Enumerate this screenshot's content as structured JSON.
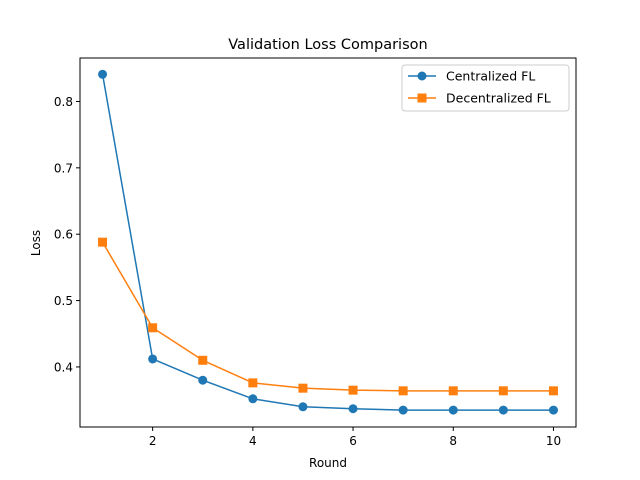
{
  "chart_data": {
    "type": "line",
    "title": "Validation Loss Comparison",
    "xlabel": "Round",
    "ylabel": "Loss",
    "x": [
      1,
      2,
      3,
      4,
      5,
      6,
      7,
      8,
      9,
      10
    ],
    "xlim": [
      0.55,
      10.45
    ],
    "ylim": [
      0.3095,
      0.8655
    ],
    "xticks": [
      2,
      4,
      6,
      8,
      10
    ],
    "yticks": [
      0.4,
      0.5,
      0.6,
      0.7,
      0.8
    ],
    "xtick_labels": [
      "2",
      "4",
      "6",
      "8",
      "10"
    ],
    "ytick_labels": [
      "0.4",
      "0.5",
      "0.6",
      "0.7",
      "0.8"
    ],
    "grid": false,
    "legend_position": "top-right",
    "series": [
      {
        "name": "Centralized FL",
        "marker": "circle",
        "color": "#1f77b4",
        "values": [
          0.841,
          0.412,
          0.38,
          0.352,
          0.34,
          0.337,
          0.335,
          0.335,
          0.335,
          0.335
        ]
      },
      {
        "name": "Decentralized FL",
        "marker": "square",
        "color": "#ff7f0e",
        "values": [
          0.588,
          0.459,
          0.41,
          0.376,
          0.368,
          0.365,
          0.364,
          0.364,
          0.364,
          0.364
        ]
      }
    ]
  }
}
